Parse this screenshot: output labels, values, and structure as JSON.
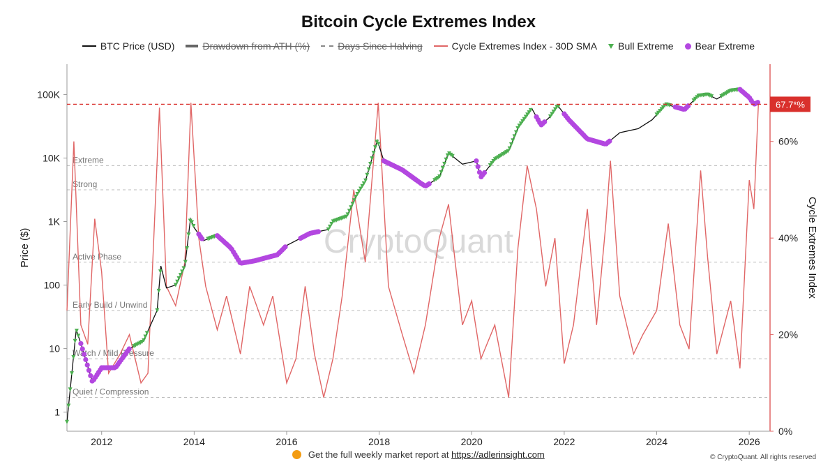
{
  "chart_data": {
    "type": "line",
    "title": "Bitcoin Cycle Extremes Index",
    "watermark": "CryptoQuant",
    "legend": [
      {
        "label": "BTC Price (USD)",
        "style": "line",
        "struck": false
      },
      {
        "label": "Drawdown from ATH (%)",
        "style": "thick",
        "struck": true
      },
      {
        "label": "Days Since Halving",
        "style": "dash",
        "struck": true
      },
      {
        "label": "Cycle Extremes Index - 30D SMA",
        "style": "red-line",
        "struck": false
      },
      {
        "label": "Bull Extreme",
        "style": "triangle",
        "struck": false
      },
      {
        "label": "Bear Extreme",
        "style": "dot",
        "struck": false
      }
    ],
    "ylabel_left": "Price ($)",
    "ylabel_right": "Cycle Extremes Index",
    "y_left_scale": "log",
    "y_left_range": [
      0.5,
      300000
    ],
    "y_left_ticks": [
      {
        "value": 1,
        "label": "1"
      },
      {
        "value": 10,
        "label": "10"
      },
      {
        "value": 100,
        "label": "100"
      },
      {
        "value": 1000,
        "label": "1K"
      },
      {
        "value": 10000,
        "label": "10K"
      },
      {
        "value": 100000,
        "label": "100K"
      }
    ],
    "y_right_range": [
      0,
      76
    ],
    "y_right_ticks": [
      {
        "value": 0,
        "label": "0%"
      },
      {
        "value": 20,
        "label": "20%"
      },
      {
        "value": 40,
        "label": "40%"
      },
      {
        "value": 60,
        "label": "60%"
      }
    ],
    "x_range": [
      2011.25,
      2026.45
    ],
    "x_ticks": [
      {
        "value": 2012,
        "label": "2012"
      },
      {
        "value": 2014,
        "label": "2014"
      },
      {
        "value": 2016,
        "label": "2016"
      },
      {
        "value": 2018,
        "label": "2018"
      },
      {
        "value": 2020,
        "label": "2020"
      },
      {
        "value": 2022,
        "label": "2022"
      },
      {
        "value": 2024,
        "label": "2024"
      },
      {
        "value": 2026,
        "label": "2026"
      }
    ],
    "zones": [
      {
        "label": "Extreme",
        "value": 55
      },
      {
        "label": "Strong",
        "value": 50
      },
      {
        "label": "Active Phase",
        "value": 35
      },
      {
        "label": "Early Build / Unwind",
        "value": 25
      },
      {
        "label": "Watch / Mild Pressure",
        "value": 15
      },
      {
        "label": "Quiet / Compression",
        "value": 7
      }
    ],
    "current_marker": {
      "value": 67.7,
      "label": "67.7*%"
    },
    "price_series": [
      {
        "x": 2011.25,
        "y": 0.7
      },
      {
        "x": 2011.45,
        "y": 20
      },
      {
        "x": 2011.55,
        "y": 12
      },
      {
        "x": 2011.8,
        "y": 3
      },
      {
        "x": 2012.0,
        "y": 5
      },
      {
        "x": 2012.3,
        "y": 5
      },
      {
        "x": 2012.6,
        "y": 10
      },
      {
        "x": 2012.9,
        "y": 13
      },
      {
        "x": 2013.2,
        "y": 40
      },
      {
        "x": 2013.28,
        "y": 200
      },
      {
        "x": 2013.4,
        "y": 90
      },
      {
        "x": 2013.6,
        "y": 100
      },
      {
        "x": 2013.8,
        "y": 200
      },
      {
        "x": 2013.92,
        "y": 1100
      },
      {
        "x": 2014.0,
        "y": 800
      },
      {
        "x": 2014.2,
        "y": 500
      },
      {
        "x": 2014.5,
        "y": 600
      },
      {
        "x": 2014.8,
        "y": 380
      },
      {
        "x": 2015.0,
        "y": 220
      },
      {
        "x": 2015.3,
        "y": 240
      },
      {
        "x": 2015.8,
        "y": 300
      },
      {
        "x": 2016.0,
        "y": 420
      },
      {
        "x": 2016.5,
        "y": 650
      },
      {
        "x": 2016.9,
        "y": 750
      },
      {
        "x": 2017.0,
        "y": 1000
      },
      {
        "x": 2017.3,
        "y": 1200
      },
      {
        "x": 2017.5,
        "y": 2500
      },
      {
        "x": 2017.7,
        "y": 4300
      },
      {
        "x": 2017.96,
        "y": 19000
      },
      {
        "x": 2018.1,
        "y": 9000
      },
      {
        "x": 2018.5,
        "y": 6500
      },
      {
        "x": 2018.9,
        "y": 4000
      },
      {
        "x": 2019.0,
        "y": 3600
      },
      {
        "x": 2019.3,
        "y": 5000
      },
      {
        "x": 2019.5,
        "y": 12000
      },
      {
        "x": 2019.8,
        "y": 8000
      },
      {
        "x": 2020.1,
        "y": 9000
      },
      {
        "x": 2020.2,
        "y": 5000
      },
      {
        "x": 2020.5,
        "y": 9500
      },
      {
        "x": 2020.8,
        "y": 13000
      },
      {
        "x": 2021.0,
        "y": 30000
      },
      {
        "x": 2021.3,
        "y": 60000
      },
      {
        "x": 2021.5,
        "y": 33000
      },
      {
        "x": 2021.7,
        "y": 45000
      },
      {
        "x": 2021.86,
        "y": 67000
      },
      {
        "x": 2022.1,
        "y": 40000
      },
      {
        "x": 2022.5,
        "y": 20000
      },
      {
        "x": 2022.9,
        "y": 16500
      },
      {
        "x": 2023.2,
        "y": 25000
      },
      {
        "x": 2023.6,
        "y": 29000
      },
      {
        "x": 2023.9,
        "y": 40000
      },
      {
        "x": 2024.2,
        "y": 70000
      },
      {
        "x": 2024.6,
        "y": 58000
      },
      {
        "x": 2024.9,
        "y": 95000
      },
      {
        "x": 2025.1,
        "y": 100000
      },
      {
        "x": 2025.3,
        "y": 85000
      },
      {
        "x": 2025.6,
        "y": 115000
      },
      {
        "x": 2025.8,
        "y": 120000
      },
      {
        "x": 2026.0,
        "y": 90000
      },
      {
        "x": 2026.1,
        "y": 70000
      },
      {
        "x": 2026.2,
        "y": 76000
      }
    ],
    "index_series": [
      {
        "x": 2011.25,
        "y": 25
      },
      {
        "x": 2011.4,
        "y": 60
      },
      {
        "x": 2011.55,
        "y": 22
      },
      {
        "x": 2011.7,
        "y": 18
      },
      {
        "x": 2011.85,
        "y": 44
      },
      {
        "x": 2012.0,
        "y": 33
      },
      {
        "x": 2012.15,
        "y": 12
      },
      {
        "x": 2012.4,
        "y": 16
      },
      {
        "x": 2012.6,
        "y": 20
      },
      {
        "x": 2012.85,
        "y": 10
      },
      {
        "x": 2013.0,
        "y": 12
      },
      {
        "x": 2013.25,
        "y": 67
      },
      {
        "x": 2013.4,
        "y": 30
      },
      {
        "x": 2013.6,
        "y": 26
      },
      {
        "x": 2013.8,
        "y": 35
      },
      {
        "x": 2013.93,
        "y": 68
      },
      {
        "x": 2014.1,
        "y": 40
      },
      {
        "x": 2014.25,
        "y": 30
      },
      {
        "x": 2014.5,
        "y": 21
      },
      {
        "x": 2014.7,
        "y": 28
      },
      {
        "x": 2015.0,
        "y": 16
      },
      {
        "x": 2015.2,
        "y": 30
      },
      {
        "x": 2015.5,
        "y": 22
      },
      {
        "x": 2015.7,
        "y": 28
      },
      {
        "x": 2016.0,
        "y": 10
      },
      {
        "x": 2016.2,
        "y": 15
      },
      {
        "x": 2016.4,
        "y": 30
      },
      {
        "x": 2016.6,
        "y": 16
      },
      {
        "x": 2016.8,
        "y": 7
      },
      {
        "x": 2017.0,
        "y": 15
      },
      {
        "x": 2017.2,
        "y": 28
      },
      {
        "x": 2017.45,
        "y": 50
      },
      {
        "x": 2017.7,
        "y": 35
      },
      {
        "x": 2017.98,
        "y": 68
      },
      {
        "x": 2018.2,
        "y": 30
      },
      {
        "x": 2018.5,
        "y": 20
      },
      {
        "x": 2018.75,
        "y": 12
      },
      {
        "x": 2019.0,
        "y": 22
      },
      {
        "x": 2019.3,
        "y": 40
      },
      {
        "x": 2019.5,
        "y": 47
      },
      {
        "x": 2019.8,
        "y": 22
      },
      {
        "x": 2020.0,
        "y": 27
      },
      {
        "x": 2020.2,
        "y": 15
      },
      {
        "x": 2020.5,
        "y": 22
      },
      {
        "x": 2020.8,
        "y": 7
      },
      {
        "x": 2021.0,
        "y": 38
      },
      {
        "x": 2021.2,
        "y": 55
      },
      {
        "x": 2021.4,
        "y": 46
      },
      {
        "x": 2021.6,
        "y": 30
      },
      {
        "x": 2021.8,
        "y": 40
      },
      {
        "x": 2022.0,
        "y": 14
      },
      {
        "x": 2022.2,
        "y": 22
      },
      {
        "x": 2022.5,
        "y": 46
      },
      {
        "x": 2022.7,
        "y": 22
      },
      {
        "x": 2022.9,
        "y": 43
      },
      {
        "x": 2023.0,
        "y": 56
      },
      {
        "x": 2023.2,
        "y": 28
      },
      {
        "x": 2023.5,
        "y": 16
      },
      {
        "x": 2023.7,
        "y": 20
      },
      {
        "x": 2024.0,
        "y": 25
      },
      {
        "x": 2024.25,
        "y": 43
      },
      {
        "x": 2024.5,
        "y": 22
      },
      {
        "x": 2024.7,
        "y": 17
      },
      {
        "x": 2024.95,
        "y": 54
      },
      {
        "x": 2025.1,
        "y": 36
      },
      {
        "x": 2025.3,
        "y": 16
      },
      {
        "x": 2025.6,
        "y": 27
      },
      {
        "x": 2025.8,
        "y": 13
      },
      {
        "x": 2026.0,
        "y": 52
      },
      {
        "x": 2026.1,
        "y": 46
      },
      {
        "x": 2026.2,
        "y": 68
      }
    ],
    "bull_extreme_periods": [
      [
        2011.25,
        2011.5
      ],
      [
        2012.7,
        2013.0
      ],
      [
        2013.2,
        2013.3
      ],
      [
        2013.6,
        2014.0
      ],
      [
        2014.3,
        2014.5
      ],
      [
        2016.9,
        2018.0
      ],
      [
        2019.2,
        2019.6
      ],
      [
        2020.4,
        2021.3
      ],
      [
        2021.7,
        2021.9
      ],
      [
        2024.0,
        2024.3
      ],
      [
        2024.8,
        2025.2
      ],
      [
        2025.4,
        2025.8
      ]
    ],
    "bear_extreme_periods": [
      [
        2011.55,
        2012.0
      ],
      [
        2012.0,
        2012.6
      ],
      [
        2014.1,
        2014.2
      ],
      [
        2014.5,
        2016.0
      ],
      [
        2016.3,
        2016.7
      ],
      [
        2018.1,
        2019.1
      ],
      [
        2020.1,
        2020.3
      ],
      [
        2021.4,
        2021.6
      ],
      [
        2022.0,
        2023.0
      ],
      [
        2024.4,
        2024.7
      ],
      [
        2025.8,
        2026.2
      ]
    ]
  },
  "footer": {
    "note": "Get the full weekly market report at",
    "link": "https://adlerinsight.com",
    "copyright": "© CryptoQuant. All rights reserved"
  },
  "colors": {
    "price": "#111111",
    "index": "#e06666",
    "bull": "#4caf50",
    "bear": "#b347e0",
    "marker": "#d9302c",
    "grid": "#bbbbbb"
  }
}
